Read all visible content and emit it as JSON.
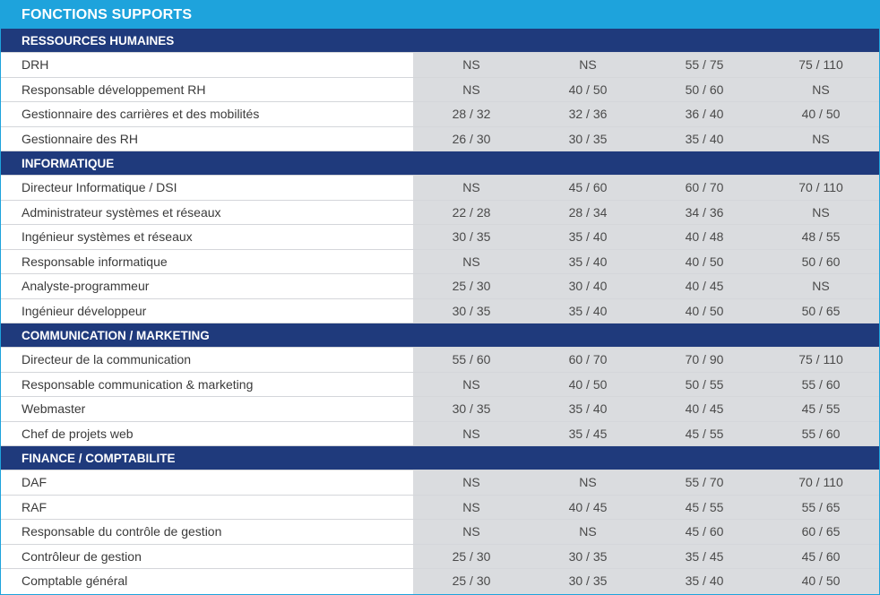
{
  "title": "FONCTIONS SUPPORTS",
  "sections": [
    {
      "name": "RESSOURCES HUMAINES",
      "rows": [
        {
          "label": "DRH",
          "values": [
            "NS",
            "NS",
            "55 / 75",
            "75 / 110"
          ]
        },
        {
          "label": "Responsable développement RH",
          "values": [
            "NS",
            "40 / 50",
            "50 / 60",
            "NS"
          ]
        },
        {
          "label": "Gestionnaire des carrières et des mobilités",
          "values": [
            "28 / 32",
            "32 / 36",
            "36 / 40",
            "40 / 50"
          ]
        },
        {
          "label": "Gestionnaire des RH",
          "values": [
            "26 / 30",
            "30 / 35",
            "35 / 40",
            "NS"
          ]
        }
      ]
    },
    {
      "name": "INFORMATIQUE",
      "rows": [
        {
          "label": "Directeur Informatique / DSI",
          "values": [
            "NS",
            "45 / 60",
            "60 / 70",
            "70 / 110"
          ]
        },
        {
          "label": "Administrateur systèmes et réseaux",
          "values": [
            "22 / 28",
            "28 / 34",
            "34 / 36",
            "NS"
          ]
        },
        {
          "label": "Ingénieur systèmes et réseaux",
          "values": [
            "30 / 35",
            "35 / 40",
            "40 / 48",
            "48 / 55"
          ]
        },
        {
          "label": "Responsable informatique",
          "values": [
            "NS",
            "35 / 40",
            "40 / 50",
            "50 / 60"
          ]
        },
        {
          "label": "Analyste-programmeur",
          "values": [
            "25 / 30",
            "30 / 40",
            "40 / 45",
            "NS"
          ]
        },
        {
          "label": "Ingénieur développeur",
          "values": [
            "30 / 35",
            "35 / 40",
            "40 / 50",
            "50 / 65"
          ]
        }
      ]
    },
    {
      "name": "COMMUNICATION / MARKETING",
      "rows": [
        {
          "label": "Directeur de la communication",
          "values": [
            "55 / 60",
            "60 / 70",
            "70 / 90",
            "75 / 110"
          ]
        },
        {
          "label": "Responsable communication & marketing",
          "values": [
            "NS",
            "40 / 50",
            "50 / 55",
            "55 / 60"
          ]
        },
        {
          "label": "Webmaster",
          "values": [
            "30 / 35",
            "35 / 40",
            "40 / 45",
            "45 / 55"
          ]
        },
        {
          "label": "Chef de projets web",
          "values": [
            "NS",
            "35 / 45",
            "45 / 55",
            "55 / 60"
          ]
        }
      ]
    },
    {
      "name": "FINANCE / COMPTABILITE",
      "rows": [
        {
          "label": "DAF",
          "values": [
            "NS",
            "NS",
            "55 / 70",
            "70 / 110"
          ]
        },
        {
          "label": "RAF",
          "values": [
            "NS",
            "40 / 45",
            "45 / 55",
            "55 / 65"
          ]
        },
        {
          "label": "Responsable du contrôle de gestion",
          "values": [
            "NS",
            "NS",
            "45 / 60",
            "60 / 65"
          ]
        },
        {
          "label": "Contrôleur de gestion",
          "values": [
            "25 / 30",
            "30 / 35",
            "35 / 45",
            "45 / 60"
          ]
        },
        {
          "label": "Comptable général",
          "values": [
            "25 / 30",
            "30 / 35",
            "35 / 40",
            "40 / 50"
          ]
        }
      ]
    }
  ]
}
